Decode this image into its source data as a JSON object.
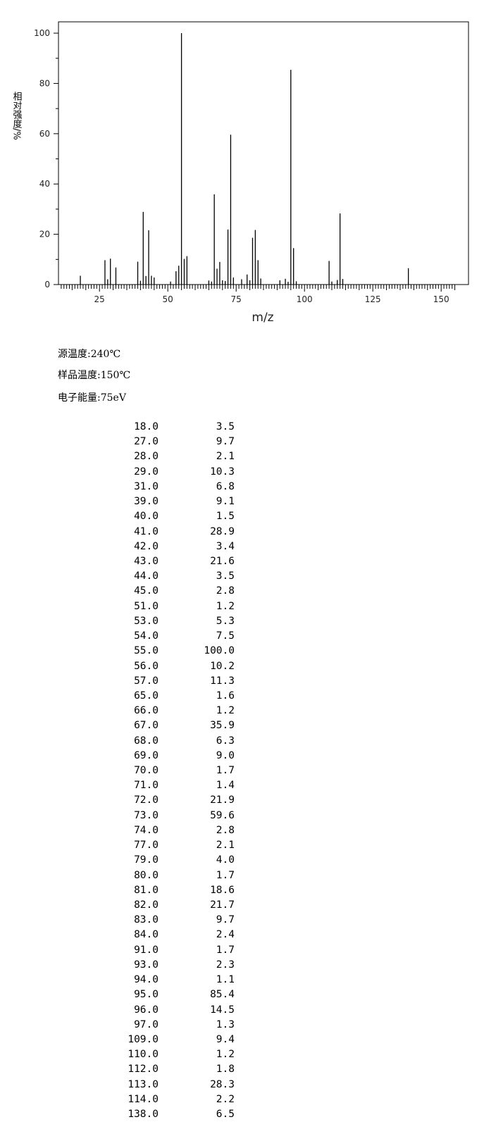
{
  "chart_data": {
    "type": "bar",
    "title": "",
    "xlabel": "m/z",
    "ylabel": "相对强度/%",
    "xlim": [
      10,
      160
    ],
    "ylim": [
      0,
      104.5
    ],
    "xticks": [
      25,
      50,
      75,
      100,
      125,
      150
    ],
    "yticks": [
      0,
      20,
      40,
      60,
      80,
      100
    ],
    "grid": false,
    "line_color": "#000000",
    "peaks": [
      {
        "mz": "18.0",
        "intensity": "3.5"
      },
      {
        "mz": "27.0",
        "intensity": "9.7"
      },
      {
        "mz": "28.0",
        "intensity": "2.1"
      },
      {
        "mz": "29.0",
        "intensity": "10.3"
      },
      {
        "mz": "31.0",
        "intensity": "6.8"
      },
      {
        "mz": "39.0",
        "intensity": "9.1"
      },
      {
        "mz": "40.0",
        "intensity": "1.5"
      },
      {
        "mz": "41.0",
        "intensity": "28.9"
      },
      {
        "mz": "42.0",
        "intensity": "3.4"
      },
      {
        "mz": "43.0",
        "intensity": "21.6"
      },
      {
        "mz": "44.0",
        "intensity": "3.5"
      },
      {
        "mz": "45.0",
        "intensity": "2.8"
      },
      {
        "mz": "51.0",
        "intensity": "1.2"
      },
      {
        "mz": "53.0",
        "intensity": "5.3"
      },
      {
        "mz": "54.0",
        "intensity": "7.5"
      },
      {
        "mz": "55.0",
        "intensity": "100.0"
      },
      {
        "mz": "56.0",
        "intensity": "10.2"
      },
      {
        "mz": "57.0",
        "intensity": "11.3"
      },
      {
        "mz": "65.0",
        "intensity": "1.6"
      },
      {
        "mz": "66.0",
        "intensity": "1.2"
      },
      {
        "mz": "67.0",
        "intensity": "35.9"
      },
      {
        "mz": "68.0",
        "intensity": "6.3"
      },
      {
        "mz": "69.0",
        "intensity": "9.0"
      },
      {
        "mz": "70.0",
        "intensity": "1.7"
      },
      {
        "mz": "71.0",
        "intensity": "1.4"
      },
      {
        "mz": "72.0",
        "intensity": "21.9"
      },
      {
        "mz": "73.0",
        "intensity": "59.6"
      },
      {
        "mz": "74.0",
        "intensity": "2.8"
      },
      {
        "mz": "77.0",
        "intensity": "2.1"
      },
      {
        "mz": "79.0",
        "intensity": "4.0"
      },
      {
        "mz": "80.0",
        "intensity": "1.7"
      },
      {
        "mz": "81.0",
        "intensity": "18.6"
      },
      {
        "mz": "82.0",
        "intensity": "21.7"
      },
      {
        "mz": "83.0",
        "intensity": "9.7"
      },
      {
        "mz": "84.0",
        "intensity": "2.4"
      },
      {
        "mz": "91.0",
        "intensity": "1.7"
      },
      {
        "mz": "93.0",
        "intensity": "2.3"
      },
      {
        "mz": "94.0",
        "intensity": "1.1"
      },
      {
        "mz": "95.0",
        "intensity": "85.4"
      },
      {
        "mz": "96.0",
        "intensity": "14.5"
      },
      {
        "mz": "97.0",
        "intensity": "1.3"
      },
      {
        "mz": "109.0",
        "intensity": "9.4"
      },
      {
        "mz": "110.0",
        "intensity": "1.2"
      },
      {
        "mz": "112.0",
        "intensity": "1.8"
      },
      {
        "mz": "113.0",
        "intensity": "28.3"
      },
      {
        "mz": "114.0",
        "intensity": "2.2"
      },
      {
        "mz": "138.0",
        "intensity": "6.5"
      }
    ]
  },
  "conditions": {
    "source_temp": "源温度:240℃",
    "sample_temp": "样品温度:150℃",
    "electron_energy": "电子能量:75eV"
  }
}
